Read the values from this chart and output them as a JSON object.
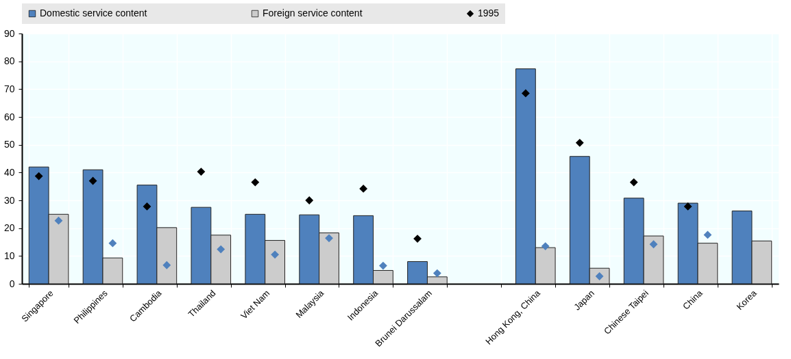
{
  "chart_data": {
    "type": "bar",
    "categories": [
      "Singapore",
      "Philippines",
      "Cambodia",
      "Thailand",
      "Viet Nam",
      "Malaysia",
      "Indonesia",
      "Brunei Darussalam",
      null,
      "Hong Kong, China",
      "Japan",
      "Chinese Taipei",
      "China",
      "Korea"
    ],
    "series": [
      {
        "name": "Domestic service content",
        "color": "#4f81bd",
        "values": [
          42,
          41,
          35.5,
          27.5,
          25,
          24.8,
          24.5,
          8,
          null,
          77.3,
          45.8,
          30.8,
          29,
          26.2
        ]
      },
      {
        "name": "Foreign service content",
        "color": "#cccccc",
        "values": [
          25,
          9.3,
          20.2,
          17.5,
          15.6,
          18.3,
          4.8,
          2.5,
          null,
          13,
          5.6,
          17.2,
          14.6,
          15.4
        ]
      },
      {
        "name": "1995",
        "type": "scatter",
        "color": "#000000",
        "values": [
          38.7,
          37,
          27.8,
          40.3,
          36.5,
          30,
          34.2,
          16.2,
          null,
          68.5,
          50.7,
          36.5,
          27.8,
          null
        ]
      },
      {
        "type": "scatter",
        "color": "#4f81bd",
        "values": [
          22.7,
          14.6,
          6.7,
          12.4,
          10.5,
          16.4,
          6.5,
          3.8,
          null,
          13.5,
          2.7,
          14.2,
          17.6,
          null
        ]
      }
    ],
    "ylim": [
      0,
      90
    ],
    "yticks": [
      0,
      10,
      20,
      30,
      40,
      50,
      60,
      70,
      80,
      90
    ],
    "grid": true,
    "legend": "top",
    "marker": "diamond"
  }
}
